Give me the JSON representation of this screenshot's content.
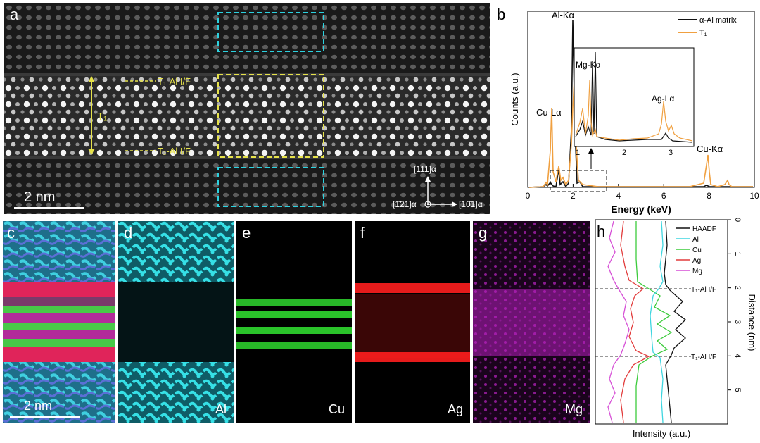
{
  "panels": {
    "a": {
      "label": "a",
      "scale_bar": "2 nm",
      "tag_top": "T₁-Al I/F",
      "tag_bottom": "T₁-Al I/F",
      "tag_t1": "T₁",
      "axis_up": "[111]α",
      "axis_left": "[1̄21]α",
      "axis_right": "[10̄1]α"
    },
    "b": {
      "label": "b"
    },
    "c": {
      "label": "c",
      "scale_bar": "2 nm"
    },
    "d": {
      "label": "d",
      "element": "Al",
      "color": "#27d3d6"
    },
    "e": {
      "label": "e",
      "element": "Cu",
      "color": "#2ee82e"
    },
    "f": {
      "label": "f",
      "element": "Ag",
      "color": "#ff1a1a"
    },
    "g": {
      "label": "g",
      "element": "Mg",
      "color": "#c21fc8"
    },
    "h": {
      "label": "h",
      "if_top": "T₁-Al I/F",
      "if_bottom": "T₁-Al I/F"
    }
  },
  "chart_data": [
    {
      "type": "line",
      "panel": "b",
      "xlabel": "Energy (keV)",
      "ylabel": "Counts (a.u.)",
      "xlim": [
        0,
        10
      ],
      "xticks": [
        0,
        2,
        4,
        6,
        8,
        10
      ],
      "legend_position": "top-right",
      "series": [
        {
          "name": "α-Al matrix",
          "color": "#111111"
        },
        {
          "name": "T₁",
          "color": "#f0a040"
        }
      ],
      "peak_labels": [
        "Al-Kα",
        "Cu-Lα",
        "Cu-Kα"
      ],
      "inset": {
        "xticks": [
          1,
          2,
          3
        ],
        "peak_labels": [
          "Mg-Kα",
          "Ag-Lα"
        ]
      }
    },
    {
      "type": "line",
      "panel": "h",
      "xlabel": "Intensity (a.u.)",
      "ylabel": "Distance (nm)",
      "ylim": [
        0,
        6
      ],
      "yticks": [
        0,
        1,
        2,
        3,
        4,
        5
      ],
      "legend_position": "top-right",
      "series": [
        {
          "name": "HAADF",
          "color": "#111111"
        },
        {
          "name": "Al",
          "color": "#3fd6e0"
        },
        {
          "name": "Cu",
          "color": "#3ccb3c"
        },
        {
          "name": "Ag",
          "color": "#e23b3b"
        },
        {
          "name": "Mg",
          "color": "#d64fd6"
        }
      ],
      "interfaces_nm": [
        2.0,
        4.0
      ]
    }
  ]
}
